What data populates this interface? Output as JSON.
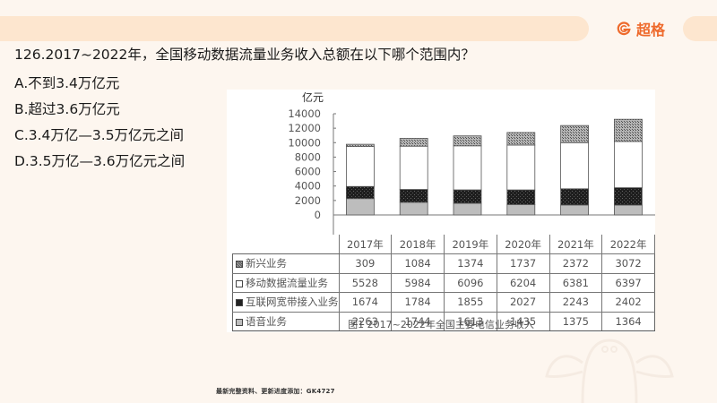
{
  "header": {
    "brand_name": "超格",
    "brand_color": "#ee6a2c",
    "bar_color": "#fde6cf"
  },
  "question": {
    "text": "126.2017~2022年，全国移动数据流量业务收入总额在以下哪个范围内？",
    "options": [
      {
        "label": "A.不到3.4万亿元"
      },
      {
        "label": "B.超过3.6万亿元"
      },
      {
        "label": "C.3.4万亿—3.5万亿元之间"
      },
      {
        "label": "D.3.5万亿—3.6万亿元之间"
      }
    ]
  },
  "chart_data": {
    "type": "bar",
    "stacked": true,
    "title": "图1  2017~2022年全国主要电信业务收入",
    "ylabel": "亿元",
    "xlabel": "",
    "ylim": [
      0,
      14000
    ],
    "yticks": [
      0,
      2000,
      4000,
      6000,
      8000,
      10000,
      12000,
      14000
    ],
    "categories": [
      "2017年",
      "2018年",
      "2019年",
      "2020年",
      "2021年",
      "2022年"
    ],
    "series": [
      {
        "name": "语音业务",
        "values": [
          2263,
          1744,
          1613,
          1435,
          1375,
          1364
        ],
        "fill": "#bdbdbd"
      },
      {
        "name": "互联网宽带接入业务",
        "values": [
          1674,
          1784,
          1855,
          2027,
          2243,
          2402
        ],
        "fill": "#222222"
      },
      {
        "name": "移动数据流量业务",
        "values": [
          5528,
          5984,
          6096,
          6204,
          6381,
          6397
        ],
        "fill": "#ffffff"
      },
      {
        "name": "新兴业务",
        "values": [
          309,
          1084,
          1374,
          1737,
          2372,
          3072
        ],
        "fill": "#8a8a8a"
      }
    ],
    "table_row_order": [
      "新兴业务",
      "移动数据流量业务",
      "互联网宽带接入业务",
      "语音业务"
    ],
    "grid": false,
    "legend_position": "data-table"
  },
  "table": {
    "years": [
      "2017年",
      "2018年",
      "2019年",
      "2020年",
      "2021年",
      "2022年"
    ],
    "rows": [
      {
        "label": "新兴业务",
        "values": [
          "309",
          "1084",
          "1374",
          "1737",
          "2372",
          "3072"
        ]
      },
      {
        "label": "移动数据流量业务",
        "values": [
          "5528",
          "5984",
          "6096",
          "6204",
          "6381",
          "6397"
        ]
      },
      {
        "label": "互联网宽带接入业务",
        "values": [
          "1674",
          "1784",
          "1855",
          "2027",
          "2243",
          "2402"
        ]
      },
      {
        "label": "语音业务",
        "values": [
          "2263",
          "1744",
          "1613",
          "1435",
          "1375",
          "1364"
        ]
      }
    ]
  },
  "footer": {
    "note": "最新完整资料、更新进度添加：GK4727"
  }
}
